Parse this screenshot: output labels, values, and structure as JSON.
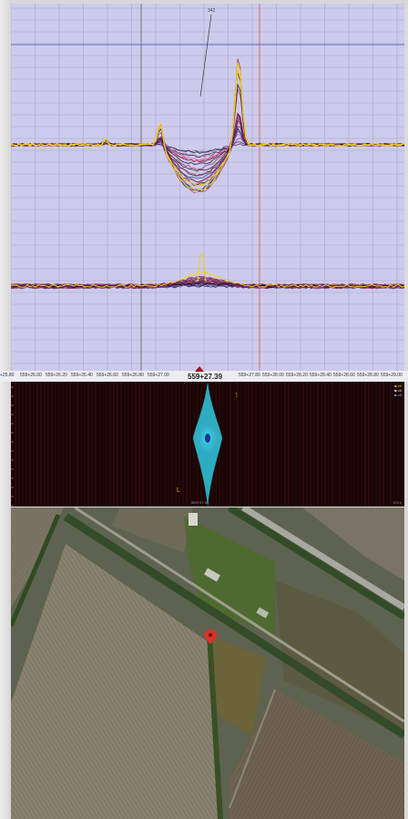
{
  "signal": {
    "annotation_label": "342",
    "hline_color": "#3b55b8",
    "red_cursor_color": "#e05060"
  },
  "axis": {
    "center_label": "559+27.39",
    "left_ticks": [
      "559+26.00",
      "559+26.20",
      "559+26.40",
      "559+26.60",
      "559+26.80",
      "559+27.00"
    ],
    "right_ticks": [
      "559+27.80",
      "559+28.00",
      "559+28.20",
      "559+28.40",
      "559+28.60",
      "559+28.80",
      "559+29.00"
    ],
    "left_edge_tick": "+25.80"
  },
  "spectrogram": {
    "marker_top": "˥",
    "marker_bottom": "L",
    "center_caption": "559+27.39",
    "legend": [
      "■ x0",
      "■ x0",
      "■ x0"
    ],
    "corner_readout": "0.0 ±"
  },
  "map": {
    "pin_color": "#d8322a"
  }
}
